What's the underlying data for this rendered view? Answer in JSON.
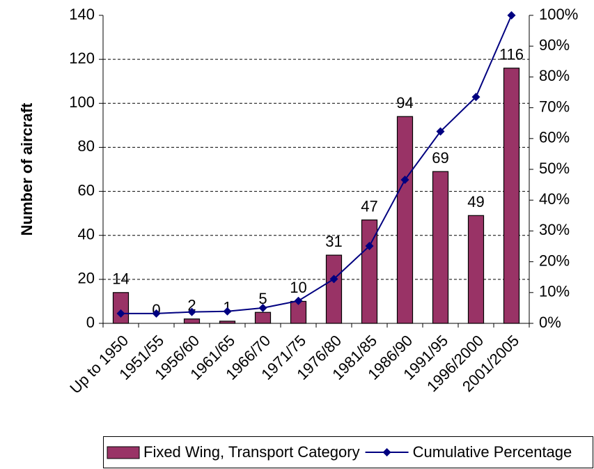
{
  "chart_data": {
    "type": "bar_line_combo",
    "y_label": "Number of aircraft",
    "categories": [
      "Up to 1950",
      "1951/55",
      "1956/60",
      "1961/65",
      "1966/70",
      "1971/75",
      "1976/80",
      "1981/85",
      "1986/90",
      "1991/95",
      "1996/2000",
      "2001/2005"
    ],
    "series": [
      {
        "name": "Fixed Wing, Transport Category",
        "type": "bar",
        "color": "#993366",
        "values": [
          14,
          0,
          2,
          1,
          5,
          10,
          31,
          47,
          94,
          69,
          49,
          116
        ]
      },
      {
        "name": "Cumulative Percentage",
        "type": "line",
        "axis": "y2",
        "color": "#000080",
        "values": [
          3.2,
          3.2,
          3.7,
          3.9,
          5.0,
          7.3,
          14.4,
          25.1,
          46.6,
          62.3,
          73.5,
          100
        ]
      }
    ],
    "ylim": [
      0,
      140
    ],
    "yticks": [
      0,
      20,
      40,
      60,
      80,
      100,
      120,
      140
    ],
    "y2lim": [
      0,
      100
    ],
    "y2ticks": [
      {
        "value": 0,
        "label": "0%"
      },
      {
        "value": 10,
        "label": "10%"
      },
      {
        "value": 20,
        "label": "20%"
      },
      {
        "value": 30,
        "label": "30%"
      },
      {
        "value": 40,
        "label": "40%"
      },
      {
        "value": 50,
        "label": "50%"
      },
      {
        "value": 60,
        "label": "60%"
      },
      {
        "value": 70,
        "label": "70%"
      },
      {
        "value": 80,
        "label": "80%"
      },
      {
        "value": 90,
        "label": "90%"
      },
      {
        "value": 100,
        "label": "100%"
      }
    ],
    "grid": true,
    "legend": "bottom"
  }
}
